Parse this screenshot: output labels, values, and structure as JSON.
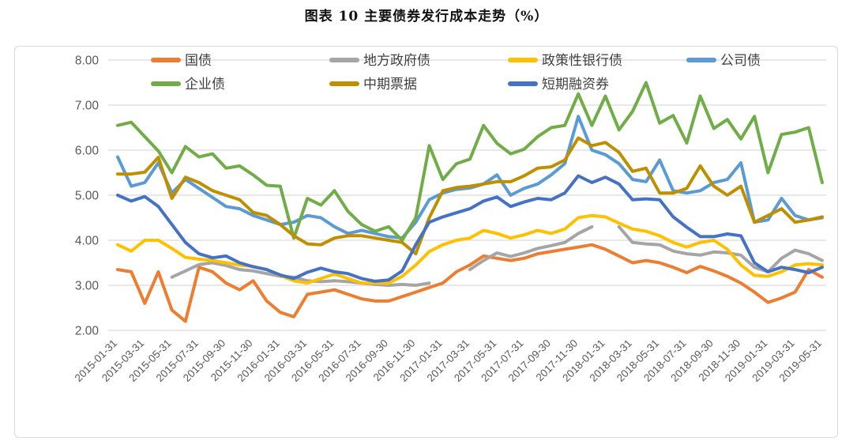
{
  "title": "图表 10 主要债券发行成本走势（%）",
  "colors": {
    "grid": "#d9d9d9",
    "axis_text": "#595959",
    "border": "#d9d9d9"
  },
  "chart_data": {
    "type": "line",
    "title": "图表 10 主要债券发行成本走势（%）",
    "xlabel": "",
    "ylabel": "",
    "ylim": [
      2.0,
      8.0
    ],
    "y_ticks": [
      "8.00",
      "7.00",
      "6.00",
      "5.00",
      "4.00",
      "3.00",
      "2.00"
    ],
    "x_tick_step": 2,
    "grid": true,
    "legend_position": "top",
    "x": [
      "2015-01-31",
      "2015-02-28",
      "2015-03-31",
      "2015-04-30",
      "2015-05-31",
      "2015-06-30",
      "2015-07-31",
      "2015-08-31",
      "2015-09-30",
      "2015-10-31",
      "2015-11-30",
      "2015-12-31",
      "2016-01-31",
      "2016-02-29",
      "2016-03-31",
      "2016-04-30",
      "2016-05-31",
      "2016-06-30",
      "2016-07-31",
      "2016-08-31",
      "2016-09-30",
      "2016-10-31",
      "2016-11-30",
      "2016-12-31",
      "2017-01-31",
      "2017-02-28",
      "2017-03-31",
      "2017-04-30",
      "2017-05-31",
      "2017-06-30",
      "2017-07-31",
      "2017-08-31",
      "2017-09-30",
      "2017-10-31",
      "2017-11-30",
      "2017-12-31",
      "2018-01-31",
      "2018-02-28",
      "2018-03-31",
      "2018-04-30",
      "2018-05-31",
      "2018-06-30",
      "2018-07-31",
      "2018-08-31",
      "2018-09-30",
      "2018-10-31",
      "2018-11-30",
      "2018-12-31",
      "2019-01-31",
      "2019-02-28",
      "2019-03-31",
      "2019-04-30",
      "2019-05-31"
    ],
    "series": [
      {
        "id": "treasury-bonds",
        "name": "国债",
        "color": "#ED7D31",
        "values": [
          3.35,
          3.3,
          2.6,
          3.3,
          2.45,
          2.2,
          3.4,
          3.3,
          3.05,
          2.9,
          3.1,
          2.65,
          2.4,
          2.3,
          2.8,
          2.85,
          2.9,
          2.8,
          2.7,
          2.65,
          2.65,
          2.75,
          2.85,
          2.95,
          3.05,
          3.3,
          3.45,
          3.65,
          3.6,
          3.55,
          3.6,
          3.7,
          3.75,
          3.8,
          3.85,
          3.9,
          3.8,
          3.65,
          3.5,
          3.55,
          3.5,
          3.4,
          3.28,
          3.42,
          3.32,
          3.2,
          3.05,
          2.85,
          2.62,
          2.72,
          2.85,
          3.35,
          3.18
        ]
      },
      {
        "id": "local-government-bonds",
        "name": "地方政府债",
        "color": "#A5A5A5",
        "values": [
          null,
          null,
          null,
          null,
          3.18,
          3.32,
          3.46,
          3.5,
          3.44,
          3.35,
          3.32,
          3.26,
          3.2,
          3.18,
          3.1,
          3.08,
          3.1,
          3.08,
          3.05,
          3.02,
          3.0,
          3.02,
          3.0,
          3.05,
          null,
          null,
          3.35,
          3.55,
          3.72,
          3.64,
          3.72,
          3.82,
          3.88,
          3.95,
          4.15,
          4.3,
          null,
          4.3,
          3.95,
          3.92,
          3.9,
          3.76,
          3.7,
          3.67,
          3.74,
          3.72,
          3.67,
          3.4,
          3.3,
          3.6,
          3.78,
          3.7,
          3.55
        ]
      },
      {
        "id": "policy-bank-bonds",
        "name": "政策性银行债",
        "color": "#FFC000",
        "values": [
          3.9,
          3.76,
          4.0,
          4.0,
          3.82,
          3.62,
          3.58,
          3.55,
          3.5,
          3.45,
          3.42,
          3.35,
          3.22,
          3.1,
          3.05,
          3.15,
          3.25,
          3.15,
          3.05,
          3.05,
          3.05,
          3.2,
          3.45,
          3.75,
          3.9,
          4.0,
          4.05,
          4.22,
          4.15,
          4.05,
          4.12,
          4.22,
          4.15,
          4.25,
          4.5,
          4.55,
          4.52,
          4.38,
          4.25,
          4.2,
          4.1,
          3.95,
          3.85,
          3.95,
          4.0,
          3.8,
          3.45,
          3.22,
          3.2,
          3.3,
          3.45,
          3.48,
          3.45
        ]
      },
      {
        "id": "corporate-bonds",
        "name": "公司债",
        "color": "#5B9BD5",
        "values": [
          5.85,
          5.2,
          5.28,
          5.72,
          5.05,
          5.35,
          5.15,
          4.95,
          4.75,
          4.7,
          4.55,
          4.45,
          4.35,
          4.4,
          4.55,
          4.5,
          4.3,
          4.15,
          4.22,
          4.15,
          4.08,
          4.05,
          4.4,
          4.9,
          5.05,
          5.13,
          5.16,
          5.25,
          5.45,
          5.0,
          5.15,
          5.25,
          5.45,
          5.7,
          6.75,
          6.0,
          5.9,
          5.7,
          5.35,
          5.3,
          5.78,
          5.1,
          5.05,
          5.1,
          5.28,
          5.35,
          5.72,
          4.4,
          4.45,
          4.93,
          4.55,
          4.45,
          4.5
        ]
      },
      {
        "id": "enterprise-bonds",
        "name": "企业债",
        "color": "#70AD47",
        "values": [
          6.55,
          6.62,
          6.3,
          5.98,
          5.5,
          6.08,
          5.85,
          5.92,
          5.6,
          5.65,
          5.45,
          5.22,
          5.2,
          4.05,
          4.93,
          4.78,
          5.1,
          4.64,
          4.35,
          4.2,
          4.3,
          4.0,
          4.5,
          6.1,
          5.35,
          5.7,
          5.8,
          6.55,
          6.15,
          5.92,
          6.02,
          6.3,
          6.5,
          6.55,
          7.25,
          6.55,
          7.2,
          6.45,
          6.86,
          7.5,
          6.6,
          6.77,
          6.16,
          7.2,
          6.48,
          6.68,
          6.25,
          6.75,
          5.5,
          6.35,
          6.4,
          6.5,
          5.28
        ]
      },
      {
        "id": "medium-term-notes",
        "name": "中期票据",
        "color": "#BF8F00",
        "values": [
          5.47,
          5.47,
          5.51,
          5.84,
          4.93,
          5.4,
          5.28,
          5.1,
          5.0,
          4.9,
          4.62,
          4.55,
          4.35,
          4.1,
          3.92,
          3.9,
          4.05,
          4.1,
          4.1,
          4.05,
          4.0,
          3.95,
          3.7,
          4.5,
          5.1,
          5.17,
          5.2,
          5.25,
          5.3,
          5.3,
          5.43,
          5.6,
          5.63,
          5.78,
          6.27,
          6.1,
          6.17,
          5.95,
          5.53,
          5.6,
          5.05,
          5.05,
          5.15,
          5.65,
          5.2,
          5.0,
          5.2,
          4.4,
          4.55,
          4.7,
          4.4,
          4.45,
          4.52
        ]
      },
      {
        "id": "short-term-commercial-paper",
        "name": "短期融资券",
        "color": "#4472C4",
        "values": [
          5.0,
          4.87,
          4.97,
          4.75,
          4.35,
          3.95,
          3.7,
          3.61,
          3.65,
          3.5,
          3.41,
          3.35,
          3.23,
          3.15,
          3.29,
          3.38,
          3.3,
          3.26,
          3.15,
          3.09,
          3.12,
          3.32,
          3.9,
          4.4,
          4.52,
          4.61,
          4.7,
          4.87,
          4.96,
          4.75,
          4.85,
          4.93,
          4.9,
          5.05,
          5.43,
          5.28,
          5.4,
          5.25,
          4.9,
          4.92,
          4.9,
          4.52,
          4.29,
          4.08,
          4.08,
          4.14,
          4.1,
          3.5,
          3.3,
          3.4,
          3.35,
          3.28,
          3.4
        ]
      }
    ],
    "legend_rows": [
      [
        0,
        1,
        2,
        3
      ],
      [
        4,
        5,
        6
      ]
    ]
  }
}
